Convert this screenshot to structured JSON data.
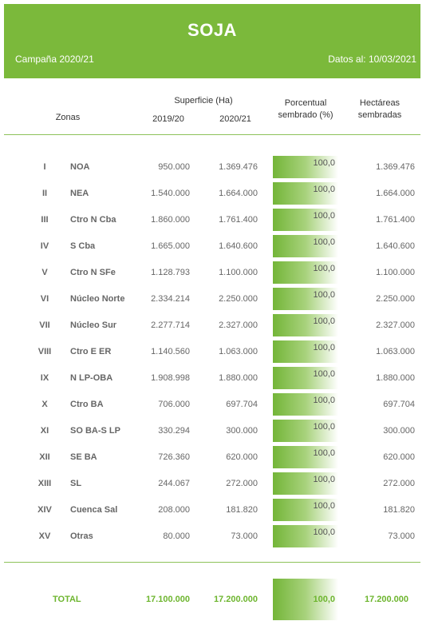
{
  "header": {
    "title": "SOJA",
    "campaign": "Campaña 2020/21",
    "date": "Datos al: 10/03/2021"
  },
  "columns": {
    "zonas": "Zonas",
    "superficie": "Superficie (Ha)",
    "y1": "2019/20",
    "y2": "2020/21",
    "porcentual_1": "Porcentual",
    "porcentual_2": "sembrado (%)",
    "hectareas_1": "Hectáreas",
    "hectareas_2": "sembradas"
  },
  "colors": {
    "accent": "#7bb93b",
    "total_text": "#6db52e"
  },
  "rows": [
    {
      "roman": "I",
      "zone": "NOA",
      "s19": "950.000",
      "s20": "1.369.476",
      "pct": "100,0",
      "ha": "1.369.476"
    },
    {
      "roman": "II",
      "zone": "NEA",
      "s19": "1.540.000",
      "s20": "1.664.000",
      "pct": "100,0",
      "ha": "1.664.000"
    },
    {
      "roman": "III",
      "zone": "Ctro N Cba",
      "s19": "1.860.000",
      "s20": "1.761.400",
      "pct": "100,0",
      "ha": "1.761.400"
    },
    {
      "roman": "IV",
      "zone": "S Cba",
      "s19": "1.665.000",
      "s20": "1.640.600",
      "pct": "100,0",
      "ha": "1.640.600"
    },
    {
      "roman": "V",
      "zone": "Ctro N SFe",
      "s19": "1.128.793",
      "s20": "1.100.000",
      "pct": "100,0",
      "ha": "1.100.000"
    },
    {
      "roman": "VI",
      "zone": "Núcleo Norte",
      "s19": "2.334.214",
      "s20": "2.250.000",
      "pct": "100,0",
      "ha": "2.250.000"
    },
    {
      "roman": "VII",
      "zone": "Núcleo Sur",
      "s19": "2.277.714",
      "s20": "2.327.000",
      "pct": "100,0",
      "ha": "2.327.000"
    },
    {
      "roman": "VIII",
      "zone": "Ctro E ER",
      "s19": "1.140.560",
      "s20": "1.063.000",
      "pct": "100,0",
      "ha": "1.063.000"
    },
    {
      "roman": "IX",
      "zone": "N LP-OBA",
      "s19": "1.908.998",
      "s20": "1.880.000",
      "pct": "100,0",
      "ha": "1.880.000"
    },
    {
      "roman": "X",
      "zone": "Ctro BA",
      "s19": "706.000",
      "s20": "697.704",
      "pct": "100,0",
      "ha": "697.704"
    },
    {
      "roman": "XI",
      "zone": "SO BA-S LP",
      "s19": "330.294",
      "s20": "300.000",
      "pct": "100,0",
      "ha": "300.000"
    },
    {
      "roman": "XII",
      "zone": "SE BA",
      "s19": "726.360",
      "s20": "620.000",
      "pct": "100,0",
      "ha": "620.000"
    },
    {
      "roman": "XIII",
      "zone": "SL",
      "s19": "244.067",
      "s20": "272.000",
      "pct": "100,0",
      "ha": "272.000"
    },
    {
      "roman": "XIV",
      "zone": "Cuenca Sal",
      "s19": "208.000",
      "s20": "181.820",
      "pct": "100,0",
      "ha": "181.820"
    },
    {
      "roman": "XV",
      "zone": "Otras",
      "s19": "80.000",
      "s20": "73.000",
      "pct": "100,0",
      "ha": "73.000"
    }
  ],
  "total": {
    "label": "TOTAL",
    "s19": "17.100.000",
    "s20": "17.200.000",
    "pct": "100,0",
    "ha": "17.200.000"
  }
}
